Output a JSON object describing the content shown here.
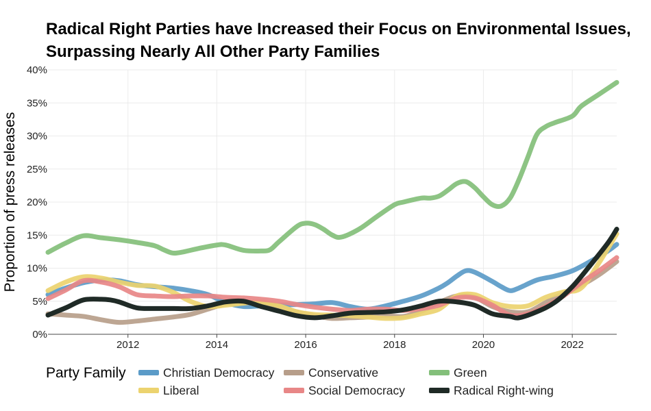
{
  "title": "Radical Right Parties have Increased their Focus on Environmental Issues, Surpassing Nearly All Other Party Families",
  "legend": {
    "title": "Party Family",
    "items": [
      {
        "name": "Christian Democracy",
        "color": "#5b9bc8"
      },
      {
        "name": "Conservative",
        "color": "#b79e8a"
      },
      {
        "name": "Green",
        "color": "#83bf7a"
      },
      {
        "name": "Liberal",
        "color": "#ecd36f"
      },
      {
        "name": "Social Democracy",
        "color": "#e88787"
      },
      {
        "name": "Radical Right-wing",
        "color": "#1f2a26"
      }
    ]
  },
  "chart_data": {
    "type": "line",
    "title": "Radical Right Parties have Increased their Focus on Environmental Issues, Surpassing Nearly All Other Party Families",
    "xlabel": "",
    "ylabel": "Proportion of press releases",
    "xlim": [
      2010.2,
      2023
    ],
    "ylim": [
      0,
      40
    ],
    "x_ticks": [
      2012,
      2014,
      2016,
      2018,
      2020,
      2022
    ],
    "x_tick_labels": [
      "2012",
      "2014",
      "2016",
      "2018",
      "2020",
      "2022"
    ],
    "y_ticks": [
      0,
      5,
      10,
      15,
      20,
      25,
      30,
      35,
      40
    ],
    "y_tick_labels": [
      "0%",
      "5%",
      "10%",
      "15%",
      "20%",
      "25%",
      "30%",
      "35%",
      "40%"
    ],
    "grid": true,
    "legend_position": "bottom",
    "series": [
      {
        "name": "Christian Democracy",
        "color": "#5b9bc8",
        "x": [
          2010.2,
          2010.6,
          2011.0,
          2011.4,
          2011.8,
          2012.2,
          2012.6,
          2013.0,
          2013.4,
          2013.8,
          2014.2,
          2014.6,
          2015.0,
          2015.4,
          2015.8,
          2016.2,
          2016.6,
          2017.0,
          2017.4,
          2017.8,
          2018.2,
          2018.6,
          2019.0,
          2019.2,
          2019.4,
          2019.6,
          2019.8,
          2020.2,
          2020.4,
          2020.6,
          2020.8,
          2021.2,
          2021.6,
          2022.0,
          2022.4,
          2022.8,
          2023.0
        ],
        "y": [
          6.0,
          7.0,
          7.8,
          8.2,
          8.1,
          7.5,
          7.2,
          7.0,
          6.6,
          6.0,
          4.8,
          4.2,
          4.3,
          4.4,
          4.5,
          4.6,
          4.8,
          4.2,
          3.8,
          4.3,
          5.0,
          5.8,
          7.0,
          7.8,
          8.8,
          9.6,
          9.4,
          8.0,
          7.2,
          6.6,
          7.0,
          8.2,
          8.8,
          9.6,
          11.0,
          12.6,
          13.6
        ]
      },
      {
        "name": "Conservative",
        "color": "#b79e8a",
        "x": [
          2010.2,
          2010.6,
          2011.0,
          2011.4,
          2011.8,
          2012.2,
          2012.6,
          2013.0,
          2013.4,
          2013.8,
          2014.2,
          2014.6,
          2015.0,
          2015.4,
          2015.8,
          2016.2,
          2016.6,
          2017.0,
          2017.4,
          2017.8,
          2018.2,
          2018.6,
          2019.0,
          2019.4,
          2019.8,
          2020.2,
          2020.6,
          2021.0,
          2021.4,
          2021.8,
          2022.2,
          2022.6,
          2023.0
        ],
        "y": [
          3.1,
          2.9,
          2.7,
          2.2,
          1.8,
          2.0,
          2.3,
          2.6,
          3.0,
          3.8,
          4.6,
          4.8,
          4.6,
          4.2,
          3.4,
          2.8,
          2.4,
          2.5,
          2.6,
          2.8,
          2.7,
          3.5,
          4.8,
          5.8,
          5.6,
          4.2,
          3.4,
          3.4,
          4.8,
          6.2,
          7.4,
          9.0,
          11.0
        ]
      },
      {
        "name": "Green",
        "color": "#83bf7a",
        "x": [
          2010.2,
          2010.6,
          2011.0,
          2011.4,
          2011.8,
          2012.2,
          2012.6,
          2012.8,
          2013.0,
          2013.2,
          2013.6,
          2014.0,
          2014.2,
          2014.6,
          2015.0,
          2015.2,
          2015.4,
          2015.8,
          2016.0,
          2016.2,
          2016.4,
          2016.6,
          2016.8,
          2017.2,
          2017.6,
          2018.0,
          2018.2,
          2018.6,
          2018.8,
          2019.0,
          2019.2,
          2019.4,
          2019.6,
          2019.8,
          2020.0,
          2020.2,
          2020.4,
          2020.6,
          2020.8,
          2021.0,
          2021.2,
          2021.4,
          2021.6,
          2022.0,
          2022.2,
          2022.6,
          2023.0
        ],
        "y": [
          12.4,
          13.8,
          14.9,
          14.6,
          14.3,
          13.9,
          13.4,
          12.8,
          12.3,
          12.4,
          13.0,
          13.5,
          13.5,
          12.7,
          12.6,
          12.8,
          14.0,
          16.3,
          16.8,
          16.6,
          15.9,
          15.0,
          14.7,
          15.9,
          17.8,
          19.6,
          20.0,
          20.6,
          20.6,
          20.9,
          21.8,
          22.8,
          23.1,
          22.2,
          20.8,
          19.6,
          19.4,
          20.6,
          23.4,
          26.8,
          30.2,
          31.4,
          32.0,
          33.0,
          34.5,
          36.3,
          38.1
        ]
      },
      {
        "name": "Liberal",
        "color": "#ecd36f",
        "x": [
          2010.2,
          2010.6,
          2011.0,
          2011.4,
          2011.8,
          2012.2,
          2012.6,
          2013.0,
          2013.4,
          2013.8,
          2014.2,
          2014.6,
          2015.0,
          2015.4,
          2015.8,
          2016.2,
          2016.6,
          2017.0,
          2017.4,
          2017.8,
          2018.2,
          2018.6,
          2019.0,
          2019.4,
          2019.8,
          2020.2,
          2020.6,
          2021.0,
          2021.4,
          2021.8,
          2022.2,
          2022.6,
          2023.0
        ],
        "y": [
          6.6,
          7.9,
          8.7,
          8.5,
          7.9,
          7.4,
          7.3,
          6.4,
          5.0,
          4.2,
          4.4,
          4.7,
          4.9,
          4.3,
          3.4,
          3.0,
          2.9,
          2.8,
          2.6,
          2.4,
          2.5,
          3.1,
          3.8,
          5.8,
          6.0,
          4.8,
          4.2,
          4.3,
          5.6,
          6.4,
          7.0,
          10.8,
          15.2
        ]
      },
      {
        "name": "Social Democracy",
        "color": "#e88787",
        "x": [
          2010.2,
          2010.6,
          2011.0,
          2011.4,
          2011.8,
          2012.2,
          2012.6,
          2013.0,
          2013.4,
          2013.8,
          2014.2,
          2014.6,
          2015.0,
          2015.4,
          2015.8,
          2016.2,
          2016.6,
          2017.0,
          2017.4,
          2017.8,
          2018.2,
          2018.6,
          2019.0,
          2019.4,
          2019.8,
          2020.2,
          2020.6,
          2021.0,
          2021.4,
          2021.8,
          2022.2,
          2022.6,
          2023.0
        ],
        "y": [
          5.4,
          6.7,
          8.1,
          7.9,
          7.2,
          6.0,
          5.8,
          5.7,
          5.8,
          5.8,
          5.6,
          5.5,
          5.3,
          5.0,
          4.5,
          4.1,
          3.8,
          3.6,
          3.8,
          3.8,
          3.6,
          3.9,
          4.4,
          5.5,
          5.5,
          4.4,
          2.9,
          3.1,
          4.2,
          5.8,
          7.8,
          9.6,
          11.6
        ]
      },
      {
        "name": "Radical Right-wing",
        "color": "#1f2a26",
        "x": [
          2010.2,
          2010.6,
          2011.0,
          2011.4,
          2011.6,
          2011.8,
          2012.2,
          2012.6,
          2013.0,
          2013.4,
          2013.8,
          2014.2,
          2014.6,
          2015.0,
          2015.4,
          2015.8,
          2016.2,
          2016.6,
          2017.0,
          2017.4,
          2017.8,
          2018.2,
          2018.6,
          2019.0,
          2019.4,
          2019.8,
          2020.2,
          2020.6,
          2020.8,
          2021.2,
          2021.6,
          2022.0,
          2022.4,
          2022.8,
          2023.0
        ],
        "y": [
          2.9,
          4.0,
          5.2,
          5.3,
          5.2,
          4.9,
          4.0,
          3.9,
          3.9,
          3.9,
          4.3,
          4.9,
          5.0,
          4.2,
          3.5,
          2.8,
          2.5,
          2.8,
          3.2,
          3.3,
          3.4,
          3.7,
          4.3,
          5.0,
          4.9,
          4.4,
          3.1,
          2.7,
          2.5,
          3.4,
          4.8,
          7.2,
          10.4,
          13.8,
          15.9
        ]
      }
    ]
  }
}
